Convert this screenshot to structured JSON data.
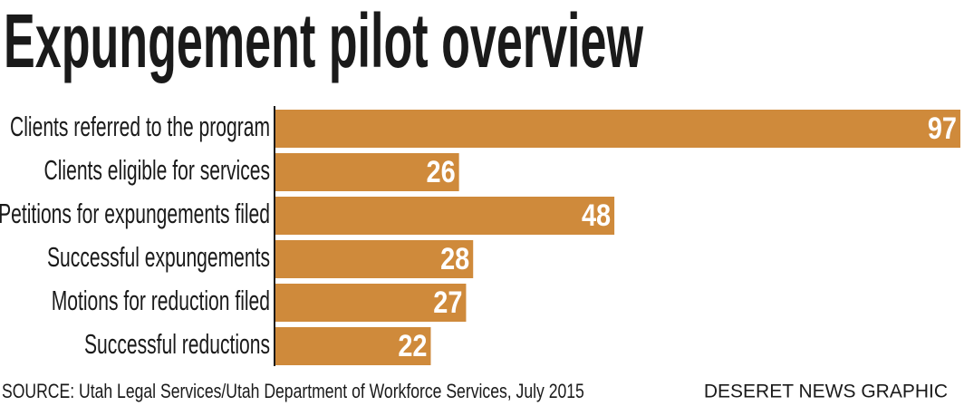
{
  "chart_data": {
    "type": "bar",
    "orientation": "horizontal",
    "title": "Expungement pilot overview",
    "categories": [
      "Clients referred to the program",
      "Clients eligible for services",
      "Petitions for expungements filed",
      "Successful expungements",
      "Motions for reduction filed",
      "Successful reductions"
    ],
    "values": [
      97,
      26,
      48,
      28,
      27,
      22
    ],
    "color": "#cf8a3b",
    "source": "SOURCE: Utah Legal Services/Utah Department of Workforce Services, July 2015",
    "credit": "DESERET NEWS GRAPHIC"
  }
}
